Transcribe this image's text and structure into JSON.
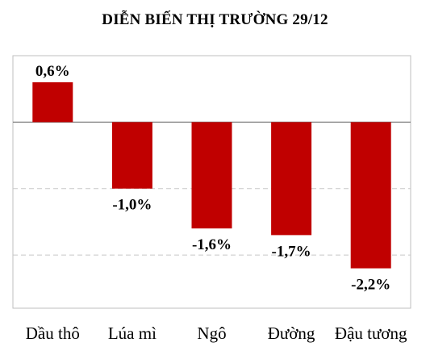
{
  "chart_data": {
    "type": "bar",
    "title": "DIỄN BIẾN THỊ TRƯỜNG 29/12",
    "categories": [
      "Dầu thô",
      "Lúa mì",
      "Ngô",
      "Đường",
      "Đậu tương"
    ],
    "values": [
      0.6,
      -1.0,
      -1.6,
      -1.7,
      -2.2
    ],
    "data_labels": [
      "0,6%",
      "-1,0%",
      "-1,6%",
      "-1,7%",
      "-2,2%"
    ],
    "ylim": [
      -2.8,
      1.0
    ],
    "gridlines": [
      -1.0,
      -2.0
    ],
    "grid": "dashed horizontal",
    "legend": "none",
    "bar_color": "#c00000",
    "xlabel": "",
    "ylabel": ""
  }
}
